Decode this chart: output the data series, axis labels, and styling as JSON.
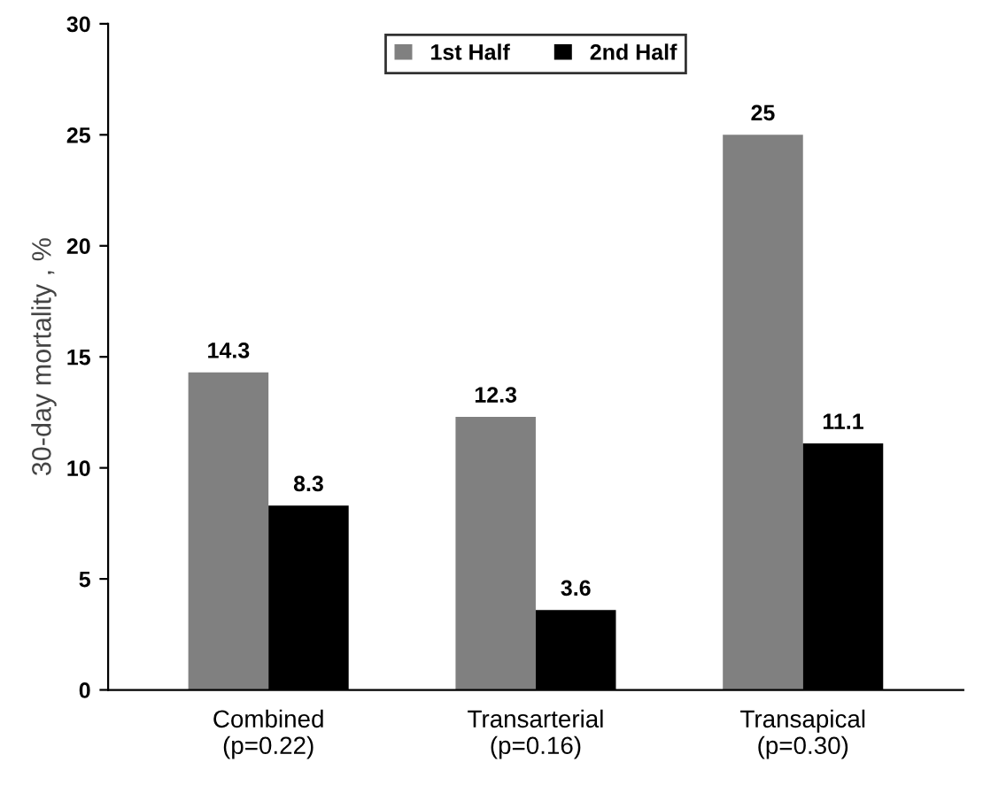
{
  "chart_data": {
    "type": "bar",
    "ylabel": "30-day mortality , %",
    "categories": [
      "Combined\n(p=0.22)",
      "Transarterial\n(p=0.16)",
      "Transapical\n(p=0.30)"
    ],
    "series": [
      {
        "name": "1st Half",
        "color": "#808080",
        "values": [
          14.3,
          12.3,
          25
        ]
      },
      {
        "name": "2nd Half",
        "color": "#000000",
        "values": [
          8.3,
          3.6,
          11.1
        ]
      }
    ],
    "ylim": [
      0,
      30
    ],
    "yticks": [
      0,
      5,
      10,
      15,
      20,
      25,
      30
    ],
    "grid": false,
    "legend": "top",
    "data_labels": true
  }
}
